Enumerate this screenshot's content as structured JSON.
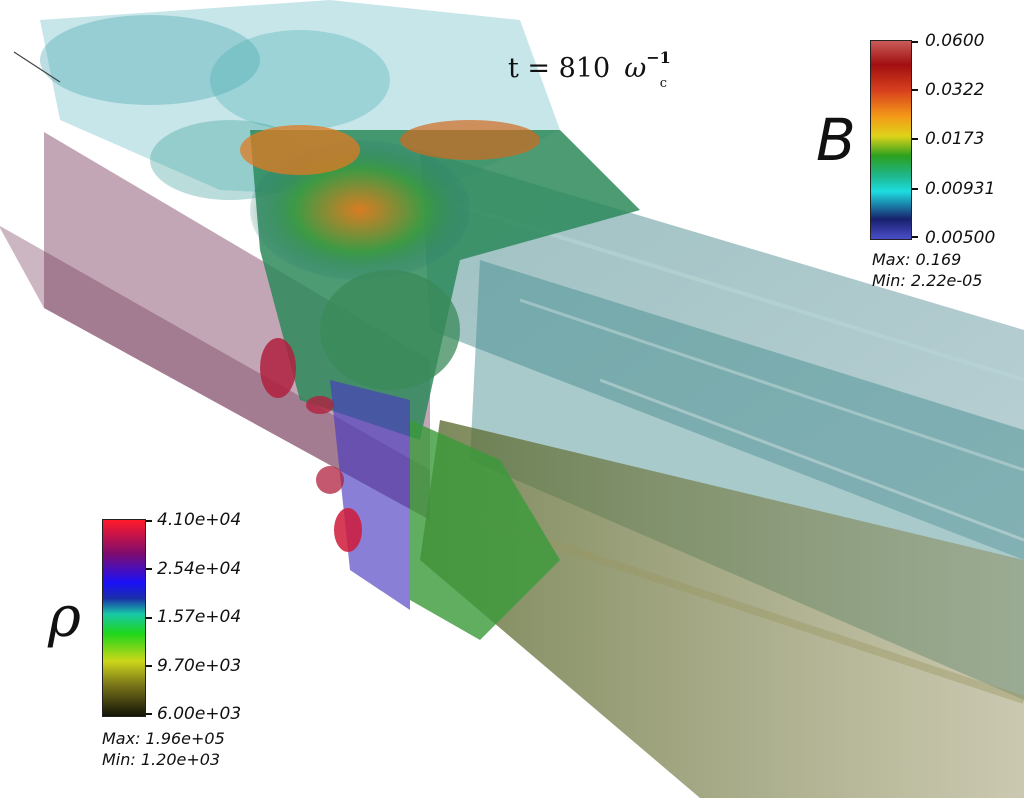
{
  "time_label": {
    "prefix": "t = 810",
    "symbol": "ω",
    "sub": "c",
    "sup": "−1"
  },
  "B_legend": {
    "symbol": "B",
    "ticks": [
      "0.0600",
      "0.0322",
      "0.0173",
      "0.00931",
      "0.00500"
    ],
    "max": "Max:  0.169",
    "min": "Min:  2.22e-05"
  },
  "rho_legend": {
    "symbol": "ρ",
    "ticks": [
      "4.10e+04",
      "2.54e+04",
      "1.57e+04",
      "9.70e+03",
      "6.00e+03"
    ],
    "max": "Max:  1.96e+05",
    "min": "Min:  1.20e+03"
  },
  "colors": {
    "background": "#ffffff",
    "plane": "#7a3a5a",
    "jet_teal": "#3f8f9a",
    "jet_olive": "#6d6a2a"
  }
}
